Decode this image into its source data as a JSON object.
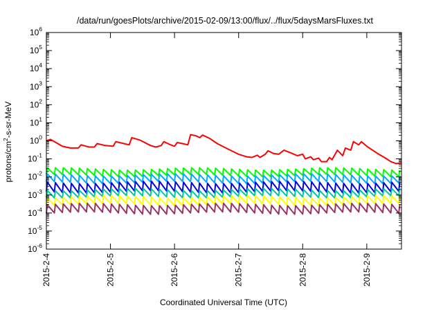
{
  "chart_data": {
    "type": "line",
    "title": "/data/run/goesPlots/archive/2015-02-09/13:00/flux/../flux/5daysMarsFluxes.txt",
    "xlabel": "Coordinated Universal Time (UTC)",
    "ylabel": "protons/cm2-s-sr-MeV",
    "y_scale": "log",
    "ylim": [
      1e-06,
      1000000.0
    ],
    "xlim": [
      "2015-02-04T00:00",
      "2015-02-09T13:00"
    ],
    "x_tick_labels": [
      "2015-2-4",
      "2015-2-5",
      "2015-2-6",
      "2015-2-7",
      "2015-2-8",
      "2015-2-9"
    ],
    "x_tick_dates": [
      "2015-02-04",
      "2015-02-05",
      "2015-02-06",
      "2015-02-07",
      "2015-02-08",
      "2015-02-09"
    ],
    "y_ticks": [
      1e-06,
      1e-05,
      0.0001,
      0.001,
      0.01,
      0.1,
      1.0,
      10.0,
      100.0,
      1000.0,
      10000.0,
      100000.0,
      1000000.0
    ],
    "y_tick_labels": [
      {
        "base": "10",
        "exp": "-6"
      },
      {
        "base": "10",
        "exp": "-5"
      },
      {
        "base": "10",
        "exp": "-4"
      },
      {
        "base": "10",
        "exp": "-3"
      },
      {
        "base": "10",
        "exp": "-2"
      },
      {
        "base": "10",
        "exp": "-1"
      },
      {
        "base": "10",
        "exp": "0"
      },
      {
        "base": "10",
        "exp": "1"
      },
      {
        "base": "10",
        "exp": "2"
      },
      {
        "base": "10",
        "exp": "3"
      },
      {
        "base": "10",
        "exp": "4"
      },
      {
        "base": "10",
        "exp": "5"
      },
      {
        "base": "10",
        "exp": "6"
      }
    ],
    "grid": false,
    "legend": "none",
    "series": [
      {
        "color": "#ff0000",
        "points": [
          [
            "2015-02-04T00:00",
            1.0
          ],
          [
            "2015-02-04T01:30",
            1.2
          ],
          [
            "2015-02-04T03:00",
            0.9
          ],
          [
            "2015-02-04T06:00",
            0.5
          ],
          [
            "2015-02-04T09:00",
            0.4
          ],
          [
            "2015-02-04T12:00",
            0.4
          ],
          [
            "2015-02-04T13:00",
            0.6
          ],
          [
            "2015-02-04T16:00",
            0.45
          ],
          [
            "2015-02-04T18:00",
            0.45
          ],
          [
            "2015-02-04T19:00",
            0.7
          ],
          [
            "2015-02-04T22:00",
            0.55
          ],
          [
            "2015-02-05T01:00",
            0.5
          ],
          [
            "2015-02-05T02:00",
            0.9
          ],
          [
            "2015-02-05T05:00",
            0.7
          ],
          [
            "2015-02-05T07:00",
            0.6
          ],
          [
            "2015-02-05T08:00",
            1.5
          ],
          [
            "2015-02-05T11:00",
            1.1
          ],
          [
            "2015-02-05T15:00",
            0.55
          ],
          [
            "2015-02-05T17:00",
            0.45
          ],
          [
            "2015-02-05T19:00",
            0.55
          ],
          [
            "2015-02-05T20:00",
            0.9
          ],
          [
            "2015-02-05T22:00",
            0.65
          ],
          [
            "2015-02-06T00:00",
            0.5
          ],
          [
            "2015-02-06T01:00",
            0.8
          ],
          [
            "2015-02-06T03:00",
            0.7
          ],
          [
            "2015-02-06T05:00",
            0.6
          ],
          [
            "2015-02-06T06:00",
            2.2
          ],
          [
            "2015-02-06T08:00",
            1.9
          ],
          [
            "2015-02-06T09:30",
            1.5
          ],
          [
            "2015-02-06T10:30",
            2.1
          ],
          [
            "2015-02-06T13:00",
            1.4
          ],
          [
            "2015-02-06T16:00",
            0.7
          ],
          [
            "2015-02-06T20:00",
            0.35
          ],
          [
            "2015-02-07T00:00",
            0.18
          ],
          [
            "2015-02-07T03:00",
            0.13
          ],
          [
            "2015-02-07T05:00",
            0.12
          ],
          [
            "2015-02-07T07:00",
            0.16
          ],
          [
            "2015-02-07T08:00",
            0.12
          ],
          [
            "2015-02-07T10:00",
            0.18
          ],
          [
            "2015-02-07T11:00",
            0.28
          ],
          [
            "2015-02-07T13:00",
            0.2
          ],
          [
            "2015-02-07T15:00",
            0.18
          ],
          [
            "2015-02-07T17:00",
            0.3
          ],
          [
            "2015-02-07T20:00",
            0.2
          ],
          [
            "2015-02-07T22:00",
            0.15
          ],
          [
            "2015-02-08T00:00",
            0.18
          ],
          [
            "2015-02-08T01:00",
            0.1
          ],
          [
            "2015-02-08T03:00",
            0.13
          ],
          [
            "2015-02-08T04:00",
            0.09
          ],
          [
            "2015-02-08T06:00",
            0.11
          ],
          [
            "2015-02-08T07:00",
            0.07
          ],
          [
            "2015-02-08T09:00",
            0.07
          ],
          [
            "2015-02-08T10:00",
            0.12
          ],
          [
            "2015-02-08T11:00",
            0.09
          ],
          [
            "2015-02-08T13:00",
            0.3
          ],
          [
            "2015-02-08T15:00",
            0.15
          ],
          [
            "2015-02-08T16:00",
            0.4
          ],
          [
            "2015-02-08T18:00",
            0.3
          ],
          [
            "2015-02-08T19:00",
            0.9
          ],
          [
            "2015-02-08T21:00",
            0.6
          ],
          [
            "2015-02-08T22:00",
            0.9
          ],
          [
            "2015-02-09T00:00",
            0.5
          ],
          [
            "2015-02-09T04:00",
            0.2
          ],
          [
            "2015-02-09T07:00",
            0.11
          ],
          [
            "2015-02-09T09:00",
            0.07
          ],
          [
            "2015-02-09T11:00",
            0.055
          ],
          [
            "2015-02-09T13:00",
            0.06
          ]
        ]
      },
      {
        "color": "#00ff00",
        "pattern": {
          "start": "2015-02-04T00:00",
          "end": "2015-02-09T13:00",
          "period_hours": 3,
          "peak": 0.028,
          "trough": 0.012
        }
      },
      {
        "color": "#00aaff",
        "pattern": {
          "start": "2015-02-04T00:00",
          "end": "2015-02-09T13:00",
          "period_hours": 3,
          "peak": 0.013,
          "trough": 0.005
        }
      },
      {
        "color": "#0000dd",
        "pattern": {
          "start": "2015-02-04T00:00",
          "end": "2015-02-09T13:00",
          "period_hours": 3,
          "peak": 0.005,
          "trough": 0.0015
        }
      },
      {
        "color": "#00c8a0",
        "pattern": {
          "start": "2015-02-04T00:00",
          "end": "2015-02-09T13:00",
          "period_hours": 3,
          "peak": 0.002,
          "trough": 0.0008
        }
      },
      {
        "color": "#ffff00",
        "pattern": {
          "start": "2015-02-04T00:00",
          "end": "2015-02-09T13:00",
          "period_hours": 3,
          "peak": 0.0008,
          "trough": 0.0003
        }
      },
      {
        "color": "#993366",
        "pattern": {
          "start": "2015-02-04T00:00",
          "end": "2015-02-09T13:00",
          "period_hours": 3,
          "peak": 0.0003,
          "trough": 0.0001
        }
      }
    ]
  }
}
